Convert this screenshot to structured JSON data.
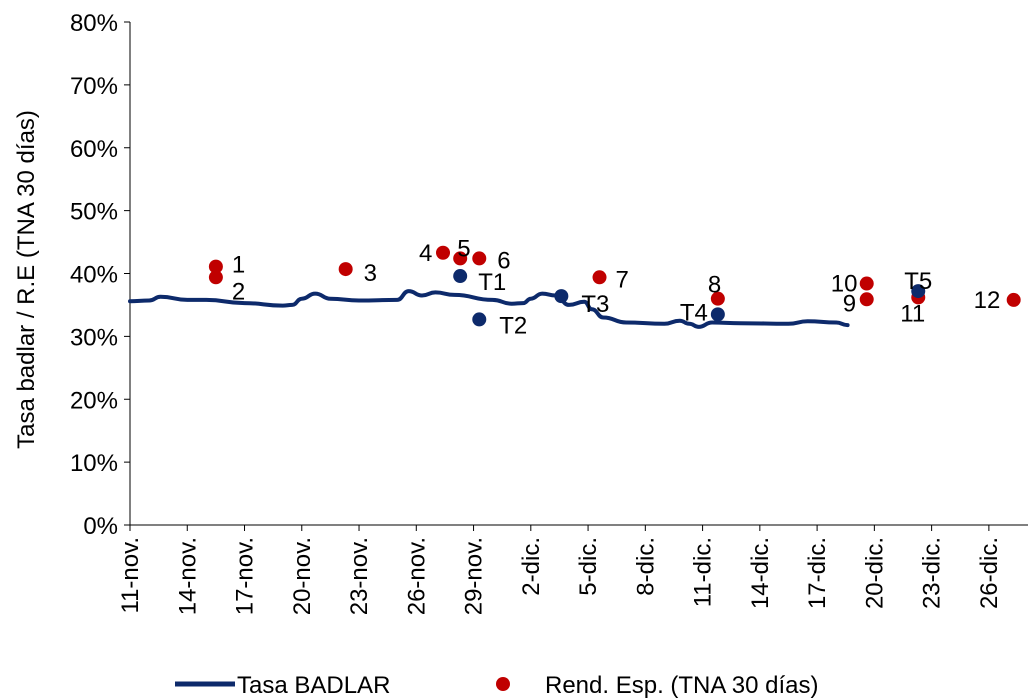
{
  "chart_data": {
    "type": "line",
    "title": "",
    "xlabel": "",
    "ylabel": "Tasa badlar / R.E (TNA 30 días)",
    "ylim": [
      0,
      0.8
    ],
    "y_ticks": [
      "0%",
      "10%",
      "20%",
      "30%",
      "40%",
      "50%",
      "60%",
      "70%",
      "80%"
    ],
    "x_range": [
      "2014-11-11",
      "2014-12-28"
    ],
    "x_ticks": [
      {
        "date": "2014-11-11",
        "label": "11-nov."
      },
      {
        "date": "2014-11-14",
        "label": "14-nov."
      },
      {
        "date": "2014-11-17",
        "label": "17-nov."
      },
      {
        "date": "2014-11-20",
        "label": "20-nov."
      },
      {
        "date": "2014-11-23",
        "label": "23-nov."
      },
      {
        "date": "2014-11-26",
        "label": "26-nov."
      },
      {
        "date": "2014-11-29",
        "label": "29-nov."
      },
      {
        "date": "2014-12-02",
        "label": "2-dic."
      },
      {
        "date": "2014-12-05",
        "label": "5-dic."
      },
      {
        "date": "2014-12-08",
        "label": "8-dic."
      },
      {
        "date": "2014-12-11",
        "label": "11-dic."
      },
      {
        "date": "2014-12-14",
        "label": "14-dic."
      },
      {
        "date": "2014-12-17",
        "label": "17-dic."
      },
      {
        "date": "2014-12-20",
        "label": "20-dic."
      },
      {
        "date": "2014-12-23",
        "label": "23-dic."
      },
      {
        "date": "2014-12-26",
        "label": "26-dic."
      }
    ],
    "grid": false,
    "legend_position": "bottom",
    "series": [
      {
        "name": "Tasa BADLAR",
        "kind": "line",
        "color": "#0d2a6b",
        "points": [
          [
            "2014-11-11",
            0.356
          ],
          [
            "2014-11-12",
            0.357
          ],
          [
            "2014-11-12.6",
            0.363
          ],
          [
            "2014-11-14",
            0.358
          ],
          [
            "2014-11-15",
            0.358
          ],
          [
            "2014-11-17",
            0.353
          ],
          [
            "2014-11-19",
            0.349
          ],
          [
            "2014-11-19.5",
            0.35
          ],
          [
            "2014-11-20",
            0.36
          ],
          [
            "2014-11-20.7",
            0.368
          ],
          [
            "2014-11-21.5",
            0.36
          ],
          [
            "2014-11-23",
            0.357
          ],
          [
            "2014-11-25",
            0.358
          ],
          [
            "2014-11-25.6",
            0.372
          ],
          [
            "2014-11-26.3",
            0.365
          ],
          [
            "2014-11-27",
            0.37
          ],
          [
            "2014-11-28",
            0.366
          ],
          [
            "2014-11-30",
            0.358
          ],
          [
            "2014-12-01",
            0.352
          ],
          [
            "2014-12-01.6",
            0.353
          ],
          [
            "2014-12-02",
            0.36
          ],
          [
            "2014-12-02.6",
            0.368
          ],
          [
            "2014-12-03.3",
            0.365
          ],
          [
            "2014-12-04",
            0.35
          ],
          [
            "2014-12-04.8",
            0.355
          ],
          [
            "2014-12-05.2",
            0.343
          ],
          [
            "2014-12-05.8",
            0.33
          ],
          [
            "2014-12-07",
            0.322
          ],
          [
            "2014-12-09",
            0.32
          ],
          [
            "2014-12-09.8",
            0.325
          ],
          [
            "2014-12-10.3",
            0.32
          ],
          [
            "2014-12-10.8",
            0.315
          ],
          [
            "2014-12-11.5",
            0.322
          ],
          [
            "2014-12-13",
            0.321
          ],
          [
            "2014-12-15.5",
            0.32
          ],
          [
            "2014-12-16.5",
            0.324
          ],
          [
            "2014-12-18",
            0.322
          ],
          [
            "2014-12-18.6",
            0.318
          ]
        ]
      },
      {
        "name": "Rend. Esp. (TNA 30 días)",
        "kind": "scatter",
        "color": "#c00000",
        "points": [
          {
            "x": "2014-11-15.5",
            "y": 0.411,
            "label": "1"
          },
          {
            "x": "2014-11-15.5",
            "y": 0.394,
            "label": "2"
          },
          {
            "x": "2014-11-22.3",
            "y": 0.407,
            "label": "3"
          },
          {
            "x": "2014-11-27.4",
            "y": 0.433,
            "label": "4"
          },
          {
            "x": "2014-11-28.3",
            "y": 0.424,
            "label": "5"
          },
          {
            "x": "2014-11-29.3",
            "y": 0.424,
            "label": "6"
          },
          {
            "x": "2014-12-05.6",
            "y": 0.394,
            "label": "7"
          },
          {
            "x": "2014-12-11.8",
            "y": 0.36,
            "label": "8"
          },
          {
            "x": "2014-12-19.6",
            "y": 0.359,
            "label": "9"
          },
          {
            "x": "2014-12-19.6",
            "y": 0.384,
            "label": "10"
          },
          {
            "x": "2014-12-22.3",
            "y": 0.362,
            "label": "11"
          },
          {
            "x": "2014-12-27.3",
            "y": 0.358,
            "label": "12"
          }
        ]
      },
      {
        "name": "",
        "kind": "scatter",
        "color": "#0d2a6b",
        "points": [
          {
            "x": "2014-11-28.3",
            "y": 0.396,
            "label": "T1"
          },
          {
            "x": "2014-11-29.3",
            "y": 0.327,
            "label": "T2"
          },
          {
            "x": "2014-12-03.6",
            "y": 0.364,
            "label": "T3"
          },
          {
            "x": "2014-12-11.8",
            "y": 0.335,
            "label": "T4"
          },
          {
            "x": "2014-12-22.3",
            "y": 0.372,
            "label": "T5"
          }
        ]
      }
    ]
  }
}
